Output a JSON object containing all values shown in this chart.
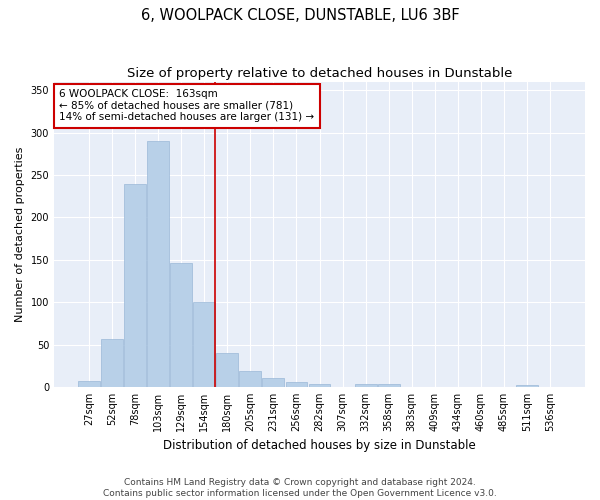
{
  "title": "6, WOOLPACK CLOSE, DUNSTABLE, LU6 3BF",
  "subtitle": "Size of property relative to detached houses in Dunstable",
  "xlabel": "Distribution of detached houses by size in Dunstable",
  "ylabel": "Number of detached properties",
  "bar_color": "#b8d0e8",
  "bar_edge_color": "#9ab8d8",
  "background_color": "#e8eef8",
  "grid_color": "#ffffff",
  "annotation_box_edge_color": "#cc0000",
  "annotation_line_color": "#cc0000",
  "categories": [
    "27sqm",
    "52sqm",
    "78sqm",
    "103sqm",
    "129sqm",
    "154sqm",
    "180sqm",
    "205sqm",
    "231sqm",
    "256sqm",
    "282sqm",
    "307sqm",
    "332sqm",
    "358sqm",
    "383sqm",
    "409sqm",
    "434sqm",
    "460sqm",
    "485sqm",
    "511sqm",
    "536sqm"
  ],
  "values": [
    7,
    57,
    239,
    290,
    146,
    100,
    40,
    19,
    10,
    6,
    4,
    0,
    3,
    3,
    0,
    0,
    0,
    0,
    0,
    2,
    0
  ],
  "ylim": [
    0,
    360
  ],
  "yticks": [
    0,
    50,
    100,
    150,
    200,
    250,
    300,
    350
  ],
  "vline_position": 5.48,
  "property_label": "6 WOOLPACK CLOSE:  163sqm",
  "annotation_line1": "← 85% of detached houses are smaller (781)",
  "annotation_line2": "14% of semi-detached houses are larger (131) →",
  "footer_line1": "Contains HM Land Registry data © Crown copyright and database right 2024.",
  "footer_line2": "Contains public sector information licensed under the Open Government Licence v3.0.",
  "title_fontsize": 10.5,
  "subtitle_fontsize": 9.5,
  "xlabel_fontsize": 8.5,
  "ylabel_fontsize": 8,
  "tick_fontsize": 7,
  "annotation_fontsize": 7.5,
  "footer_fontsize": 6.5
}
